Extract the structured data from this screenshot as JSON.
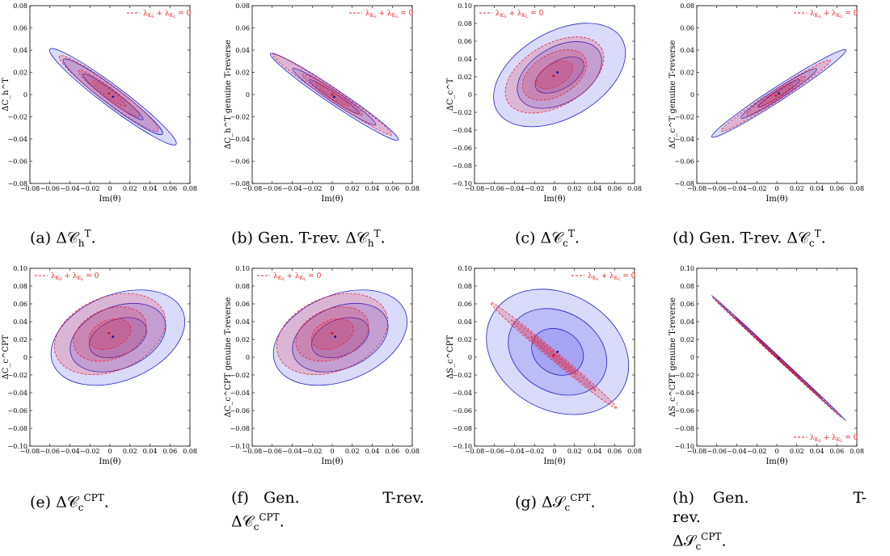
{
  "chart_data": [
    {
      "type": "contour",
      "panel_label": "(a)",
      "caption": "ΔC_h^T.",
      "ylabel": "ΔC_h^T",
      "xlabel": "Im(θ)",
      "xlim": [
        -0.08,
        0.08
      ],
      "ylim": [
        -0.08,
        0.08
      ],
      "xticks": [
        "−0.08",
        "−0.06",
        "−0.04",
        "−0.02",
        "0",
        "0.02",
        "0.04",
        "0.06",
        "0.08"
      ],
      "yticks": [
        "0.08",
        "0.06",
        "0.04",
        "0.02",
        "0",
        "−0.02",
        "−0.04",
        "−0.06",
        "−0.08"
      ],
      "legend": {
        "label": "λ_{K_S} + λ_{K_L} = 0",
        "position": "top-right"
      },
      "blue_ellipses": {
        "center": [
          0.003,
          -0.002
        ],
        "angle_deg": -37,
        "semi_axes": [
          [
            0.0375,
            0.005
          ],
          [
            0.062,
            0.0085
          ],
          [
            0.079,
            0.0105
          ]
        ]
      },
      "red_ellipses": {
        "center": [
          -0.001,
          0.001
        ],
        "angle_deg": -37,
        "semi_axes": [
          [
            0.021,
            0.0035
          ],
          [
            0.038,
            0.0055
          ],
          [
            0.062,
            0.0085
          ]
        ]
      },
      "blue_point": [
        0.003,
        -0.002
      ],
      "red_point": [
        -0.001,
        0.001
      ]
    },
    {
      "type": "contour",
      "panel_label": "(b)",
      "caption": "Gen. T-rev. ΔC_h^T.",
      "ylabel": "ΔC_h^T genuine T-reverse",
      "xlabel": "Im(θ)",
      "xlim": [
        -0.08,
        0.08
      ],
      "ylim": [
        -0.08,
        0.08
      ],
      "xticks": [
        "−0.08",
        "−0.06",
        "−0.04",
        "−0.02",
        "0",
        "0.02",
        "0.04",
        "0.06",
        "0.08"
      ],
      "yticks": [
        "0.08",
        "0.06",
        "0.04",
        "0.02",
        "0",
        "−0.02",
        "−0.04",
        "−0.06",
        "−0.08"
      ],
      "legend": {
        "label": "λ_{K_S} + λ_{K_L} = 0",
        "position": "top-right"
      },
      "blue_ellipses": {
        "center": [
          0.002,
          -0.002
        ],
        "angle_deg": -34,
        "semi_axes": [
          [
            0.03,
            0.0035
          ],
          [
            0.05,
            0.0055
          ],
          [
            0.077,
            0.0075
          ]
        ]
      },
      "red_ellipses": {
        "center": [
          0.0,
          0.0
        ],
        "angle_deg": -34,
        "semi_axes": [
          [
            0.02,
            0.0025
          ],
          [
            0.036,
            0.0045
          ],
          [
            0.072,
            0.006
          ]
        ]
      },
      "blue_point": [
        0.002,
        -0.002
      ],
      "red_point": [
        0.0,
        0.0
      ]
    },
    {
      "type": "contour",
      "panel_label": "(c)",
      "caption": "ΔC_c^T.",
      "ylabel": "ΔC_c^T",
      "xlabel": "Im(θ)",
      "xlim": [
        -0.08,
        0.08
      ],
      "ylim": [
        -0.1,
        0.1
      ],
      "xticks": [
        "−0.08",
        "−0.06",
        "−0.04",
        "−0.02",
        "0",
        "0.02",
        "0.04",
        "0.06",
        "0.08"
      ],
      "yticks": [
        "0.10",
        "0.08",
        "0.06",
        "0.04",
        "0.02",
        "0",
        "−0.02",
        "−0.04",
        "−0.06",
        "−0.08",
        "−0.10"
      ],
      "legend": {
        "label": "λ_{K_S} + λ_{K_L} = 0",
        "position": "top-left"
      },
      "blue_ellipses": {
        "center": [
          0.005,
          0.022
        ],
        "angle_deg": 30,
        "semi_axes": [
          [
            0.027,
            0.014
          ],
          [
            0.046,
            0.028
          ],
          [
            0.072,
            0.043
          ]
        ]
      },
      "red_ellipses": {
        "center": [
          0.0,
          0.022
        ],
        "angle_deg": 30,
        "semi_axes": [
          [
            0.02,
            0.011
          ],
          [
            0.035,
            0.021
          ],
          [
            0.054,
            0.031
          ]
        ]
      },
      "blue_point": [
        0.003,
        0.025
      ],
      "red_point": [
        -0.001,
        0.021
      ]
    },
    {
      "type": "contour",
      "panel_label": "(d)",
      "caption": "Gen. T-rev. ΔC_c^T.",
      "ylabel": "ΔC_c^T genuine T-reverse",
      "xlabel": "Im(θ)",
      "xlim": [
        -0.08,
        0.08
      ],
      "ylim": [
        -0.08,
        0.08
      ],
      "xticks": [
        "−0.08",
        "−0.06",
        "−0.04",
        "−0.02",
        "0",
        "0.02",
        "0.04",
        "0.06",
        "0.08"
      ],
      "yticks": [
        "0.08",
        "0.06",
        "0.04",
        "0.02",
        "0",
        "−0.02",
        "−0.04",
        "−0.06",
        "−0.08"
      ],
      "legend": {
        "label": "λ_{K_S} + λ_{K_L} = 0",
        "position": "top-right"
      },
      "blue_ellipses": {
        "center": [
          0.002,
          0.001
        ],
        "angle_deg": 33,
        "semi_axes": [
          [
            0.025,
            0.003
          ],
          [
            0.045,
            0.005
          ],
          [
            0.08,
            0.007
          ]
        ]
      },
      "red_ellipses": {
        "center": [
          -0.001,
          -0.001
        ],
        "angle_deg": 33,
        "semi_axes": [
          [
            0.02,
            0.0025
          ],
          [
            0.035,
            0.004
          ],
          [
            0.065,
            0.0055
          ]
        ]
      },
      "blue_point": [
        0.002,
        0.001
      ],
      "red_point": [
        -0.001,
        -0.001
      ]
    },
    {
      "type": "contour",
      "panel_label": "(e)",
      "caption": "ΔC_c^CPT.",
      "ylabel": "ΔC_c^CPT",
      "xlabel": "Im(θ)",
      "xlim": [
        -0.08,
        0.08
      ],
      "ylim": [
        -0.1,
        0.1
      ],
      "xticks": [
        "−0.08",
        "−0.06",
        "−0.04",
        "−0.02",
        "0",
        "0.02",
        "0.04",
        "0.06",
        "0.08"
      ],
      "yticks": [
        "0.10",
        "0.08",
        "0.06",
        "0.04",
        "0.02",
        "0",
        "−0.02",
        "−0.04",
        "−0.06",
        "−0.08",
        "−0.10"
      ],
      "legend": {
        "label": "λ_{K_S} + λ_{K_L} = 0",
        "position": "top-left"
      },
      "blue_ellipses": {
        "center": [
          0.008,
          0.022
        ],
        "angle_deg": 22,
        "semi_axes": [
          [
            0.03,
            0.018
          ],
          [
            0.05,
            0.031
          ],
          [
            0.07,
            0.043
          ]
        ]
      },
      "red_ellipses": {
        "center": [
          0.0,
          0.026
        ],
        "angle_deg": 22,
        "semi_axes": [
          [
            0.022,
            0.014
          ],
          [
            0.038,
            0.025
          ],
          [
            0.058,
            0.037
          ]
        ]
      },
      "blue_point": [
        0.003,
        0.023
      ],
      "red_point": [
        -0.001,
        0.027
      ]
    },
    {
      "type": "contour",
      "panel_label": "(f)",
      "caption": "Gen. T-rev. ΔC_c^CPT.",
      "ylabel": "ΔC_c^CPT genuine T-reverse",
      "xlabel": "Im(θ)",
      "xlim": [
        -0.08,
        0.08
      ],
      "ylim": [
        -0.1,
        0.1
      ],
      "xticks": [
        "−0.08",
        "−0.06",
        "−0.04",
        "−0.02",
        "0",
        "0.02",
        "0.04",
        "0.06",
        "0.08"
      ],
      "yticks": [
        "0.10",
        "0.08",
        "0.06",
        "0.04",
        "0.02",
        "0",
        "−0.02",
        "−0.04",
        "−0.06",
        "−0.08",
        "−0.10"
      ],
      "legend": {
        "label": "λ_{K_S} + λ_{K_L} = 0",
        "position": "top-left"
      },
      "blue_ellipses": {
        "center": [
          0.008,
          0.022
        ],
        "angle_deg": 22,
        "semi_axes": [
          [
            0.03,
            0.018
          ],
          [
            0.05,
            0.031
          ],
          [
            0.07,
            0.043
          ]
        ]
      },
      "red_ellipses": {
        "center": [
          0.0,
          0.026
        ],
        "angle_deg": 22,
        "semi_axes": [
          [
            0.022,
            0.014
          ],
          [
            0.038,
            0.025
          ],
          [
            0.058,
            0.037
          ]
        ]
      },
      "blue_point": [
        0.003,
        0.023
      ],
      "red_point": [
        0.0,
        0.027
      ]
    },
    {
      "type": "contour",
      "panel_label": "(g)",
      "caption": "ΔS_c^CPT.",
      "ylabel": "ΔS_c^CPT",
      "xlabel": "Im(θ)",
      "xlim": [
        -0.08,
        0.08
      ],
      "ylim": [
        -0.1,
        0.1
      ],
      "xticks": [
        "−0.08",
        "−0.06",
        "−0.04",
        "−0.02",
        "0",
        "0.02",
        "0.04",
        "0.06",
        "0.08"
      ],
      "yticks": [
        "0.10",
        "0.08",
        "0.06",
        "0.04",
        "0.02",
        "0",
        "−0.02",
        "−0.04",
        "−0.06",
        "−0.08",
        "−0.10"
      ],
      "legend": {
        "label": "λ_{K_S} + λ_{K_L} = 0",
        "position": "top-right"
      },
      "blue_ellipses": {
        "center": [
          0.003,
          0.006
        ],
        "angle_deg": -30,
        "semi_axes": [
          [
            0.027,
            0.022
          ],
          [
            0.052,
            0.04
          ],
          [
            0.075,
            0.058
          ]
        ]
      },
      "red_ellipses": {
        "center": [
          -0.001,
          0.002
        ],
        "angle_deg": -40,
        "semi_axes": [
          [
            0.03,
            0.0016
          ],
          [
            0.055,
            0.003
          ],
          [
            0.082,
            0.0045
          ]
        ]
      },
      "blue_point": [
        0.003,
        0.006
      ],
      "red_point": [
        -0.001,
        0.002
      ]
    },
    {
      "type": "contour",
      "panel_label": "(h)",
      "caption": "Gen. T-rev. ΔS_c^CPT.",
      "ylabel": "ΔS_c^CPT genuine T-reverse",
      "xlabel": "Im(θ)",
      "xlim": [
        -0.08,
        0.08
      ],
      "ylim": [
        -0.1,
        0.1
      ],
      "xticks": [
        "−0.08",
        "−0.06",
        "−0.04",
        "−0.02",
        "0",
        "0.02",
        "0.04",
        "0.06",
        "0.08"
      ],
      "yticks": [
        "0.10",
        "0.08",
        "0.06",
        "0.04",
        "0.02",
        "0",
        "−0.02",
        "−0.04",
        "−0.06",
        "−0.08",
        "−0.10"
      ],
      "legend": {
        "label": "λ_{K_S} + λ_{K_L} = 0",
        "position": "bottom-right"
      },
      "blue_ellipses": {
        "center": [
          0.002,
          -0.001
        ],
        "angle_deg": -43,
        "semi_axes": [
          [
            0.03,
            0.0008
          ],
          [
            0.06,
            0.001
          ],
          [
            0.092,
            0.0012
          ]
        ]
      },
      "red_ellipses": {
        "center": [
          0.0,
          0.0
        ],
        "angle_deg": -43,
        "semi_axes": [
          [
            0.03,
            0.0008
          ],
          [
            0.06,
            0.001
          ],
          [
            0.088,
            0.0012
          ]
        ]
      },
      "blue_point": [
        0.002,
        -0.001
      ],
      "red_point": [
        0.0,
        0.001
      ]
    }
  ],
  "colors": {
    "blue_fill": "#4646e6",
    "blue_stroke": "#2323c8",
    "red_fill": "#e22a3c",
    "red_stroke": "#ee2233"
  }
}
